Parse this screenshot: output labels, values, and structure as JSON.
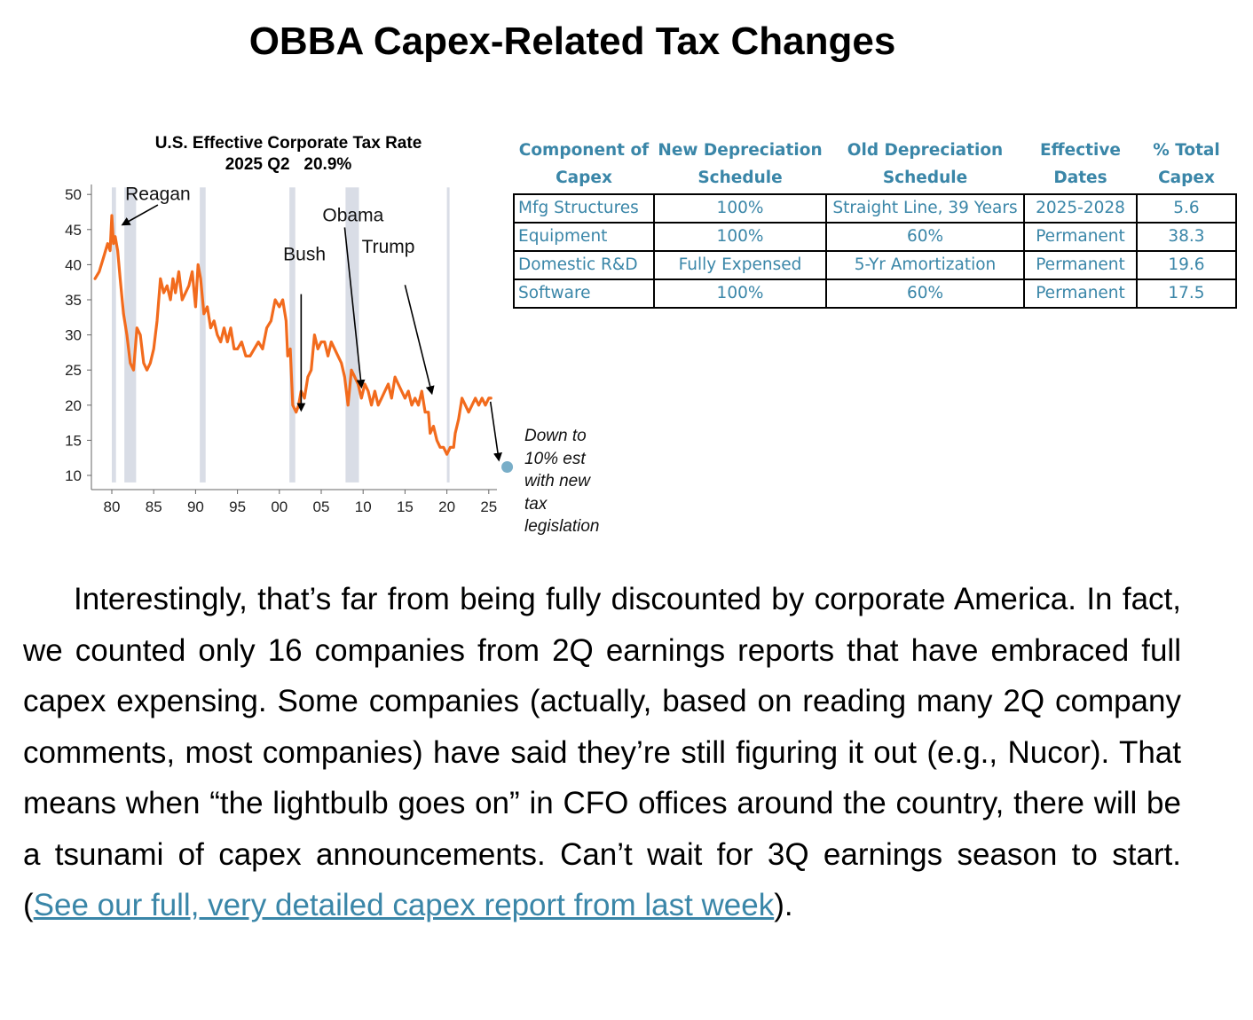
{
  "page": {
    "title": "OBBA Capex-Related Tax Changes"
  },
  "chart_data": {
    "type": "line",
    "title": "U.S. Effective Corporate Tax Rate",
    "subtitle": "2025 Q2   20.9%",
    "xlabel": "",
    "ylabel": "",
    "xlim": [
      1977.5,
      2026
    ],
    "ylim": [
      9,
      51
    ],
    "x_ticks": [
      1980,
      1985,
      1990,
      1995,
      2000,
      2005,
      2010,
      2015,
      2020,
      2025
    ],
    "x_tick_labels": [
      "80",
      "85",
      "90",
      "95",
      "00",
      "05",
      "10",
      "15",
      "20",
      "25"
    ],
    "y_ticks": [
      10,
      15,
      20,
      25,
      30,
      35,
      40,
      45,
      50
    ],
    "y_tick_labels": [
      "10",
      "15",
      "20",
      "25",
      "30",
      "35",
      "40",
      "45",
      "50"
    ],
    "recessions": [
      [
        1980.0,
        1980.5
      ],
      [
        1981.5,
        1982.9
      ],
      [
        1990.5,
        1991.2
      ],
      [
        2001.2,
        2001.9
      ],
      [
        2007.9,
        2009.5
      ],
      [
        2020.0,
        2020.3
      ]
    ],
    "series": [
      {
        "name": "Effective tax rate",
        "color": "#f26b1d",
        "x": [
          1978.0,
          1978.5,
          1979.0,
          1979.5,
          1979.8,
          1980.0,
          1980.2,
          1980.4,
          1980.7,
          1981.0,
          1981.4,
          1981.8,
          1982.2,
          1982.6,
          1983.0,
          1983.4,
          1983.8,
          1984.2,
          1984.6,
          1985.0,
          1985.4,
          1985.8,
          1986.2,
          1986.6,
          1987.0,
          1987.3,
          1987.6,
          1988.0,
          1988.4,
          1988.8,
          1989.2,
          1989.6,
          1990.0,
          1990.3,
          1990.6,
          1991.0,
          1991.4,
          1991.8,
          1992.2,
          1992.6,
          1993.0,
          1993.4,
          1993.8,
          1994.2,
          1994.6,
          1995.0,
          1995.5,
          1996.0,
          1996.5,
          1997.0,
          1997.5,
          1998.0,
          1998.5,
          1999.0,
          1999.5,
          2000.0,
          2000.4,
          2000.8,
          2001.0,
          2001.3,
          2001.6,
          2002.0,
          2002.3,
          2002.6,
          2003.0,
          2003.4,
          2003.8,
          2004.2,
          2004.6,
          2005.0,
          2005.4,
          2005.8,
          2006.2,
          2006.6,
          2007.0,
          2007.4,
          2007.8,
          2008.2,
          2008.6,
          2009.0,
          2009.4,
          2009.8,
          2010.2,
          2010.6,
          2011.0,
          2011.4,
          2011.8,
          2012.2,
          2012.6,
          2013.0,
          2013.4,
          2013.8,
          2014.2,
          2014.6,
          2015.0,
          2015.4,
          2015.8,
          2016.2,
          2016.6,
          2017.0,
          2017.4,
          2017.8,
          2018.0,
          2018.4,
          2018.8,
          2019.2,
          2019.6,
          2020.0,
          2020.4,
          2020.8,
          2021.0,
          2021.4,
          2021.8,
          2022.2,
          2022.6,
          2023.0,
          2023.4,
          2023.8,
          2024.2,
          2024.6,
          2025.0,
          2025.25
        ],
        "y": [
          38,
          39,
          41,
          43,
          42,
          47,
          43,
          44,
          42,
          38,
          33,
          30,
          26,
          25,
          31,
          30,
          26,
          25,
          26,
          28,
          32,
          38,
          36,
          37,
          35,
          38,
          36,
          39,
          35,
          36,
          37,
          39,
          34,
          40,
          38,
          33,
          34,
          31,
          32,
          30,
          29,
          31,
          29,
          31,
          28,
          28,
          29,
          27,
          27,
          28,
          29,
          28,
          31,
          32,
          35,
          34,
          35,
          32,
          27,
          28,
          20,
          19,
          20,
          22,
          21,
          24,
          25,
          30,
          28,
          29,
          29,
          27,
          29,
          28,
          27,
          26,
          24,
          20,
          25,
          24,
          23,
          21,
          23,
          22,
          20,
          22,
          20,
          21,
          22,
          23,
          21,
          24,
          23,
          22,
          21,
          22,
          20,
          21,
          20,
          22,
          19,
          19,
          16,
          17,
          15,
          14,
          14,
          13,
          14,
          14,
          16,
          18,
          21,
          20,
          19,
          20,
          21,
          20,
          21,
          20,
          21,
          21
        ]
      }
    ],
    "estimate_point": {
      "x": 2027.2,
      "y": 11.2,
      "color": "#79aec8"
    },
    "annotations": [
      {
        "label": "Reagan",
        "text_x": 1985.5,
        "text_y": 49.2,
        "from_x": 1985.5,
        "from_y": 48.5,
        "to_x": 1981.3,
        "to_y": 45.7
      },
      {
        "label": "Obama",
        "text_x": 2008.8,
        "text_y": 46.2,
        "from_x": 2007.8,
        "from_y": 45.3,
        "to_x": 2009.8,
        "to_y": 22.6
      },
      {
        "label": "Bush",
        "text_x": 2003.0,
        "text_y": 40.6,
        "from_x": 2002.6,
        "from_y": 35.8,
        "to_x": 2002.6,
        "to_y": 19.3
      },
      {
        "label": "Trump",
        "text_x": 2013.0,
        "text_y": 41.7,
        "from_x": 2015.0,
        "from_y": 37.1,
        "to_x": 2018.2,
        "to_y": 21.7
      },
      {
        "label": "",
        "text_x": 0,
        "text_y": 0,
        "from_x": 2025.2,
        "from_y": 20.5,
        "to_x": 2026.2,
        "to_y": 12.2
      }
    ],
    "note_lines": [
      "Down to",
      "10% est",
      "with new",
      "tax",
      "legislation"
    ]
  },
  "table": {
    "headers": [
      [
        "Component of",
        "Capex"
      ],
      [
        "New Depreciation",
        "Schedule"
      ],
      [
        "Old Depreciation",
        "Schedule"
      ],
      [
        "Effective",
        "Dates"
      ],
      [
        "% Total",
        "Capex"
      ]
    ],
    "rows": [
      [
        "Mfg Structures",
        "100%",
        "Straight Line, 39 Years",
        "2025-2028",
        "5.6"
      ],
      [
        "Equipment",
        "100%",
        "60%",
        "Permanent",
        "38.3"
      ],
      [
        "Domestic R&D",
        "Fully Expensed",
        "5-Yr Amortization",
        "Permanent",
        "19.6"
      ],
      [
        "Software",
        "100%",
        "60%",
        "Permanent",
        "17.5"
      ]
    ]
  },
  "body": {
    "text": "Interestingly, that’s far from being fully discounted by corporate America. In fact, we counted only 16 companies from 2Q earnings reports that have embraced full capex expensing. Some companies (actually, based on reading many 2Q company comments, most companies) have said they’re still figuring it out (e.g., Nucor). That means when “the lightbulb goes on” in CFO offices around the country, there will be a tsunami of capex announcements. Can’t wait for 3Q earnings season to start. (",
    "link_text": "See our full, very detailed capex report from last week",
    "after_link": ")."
  }
}
